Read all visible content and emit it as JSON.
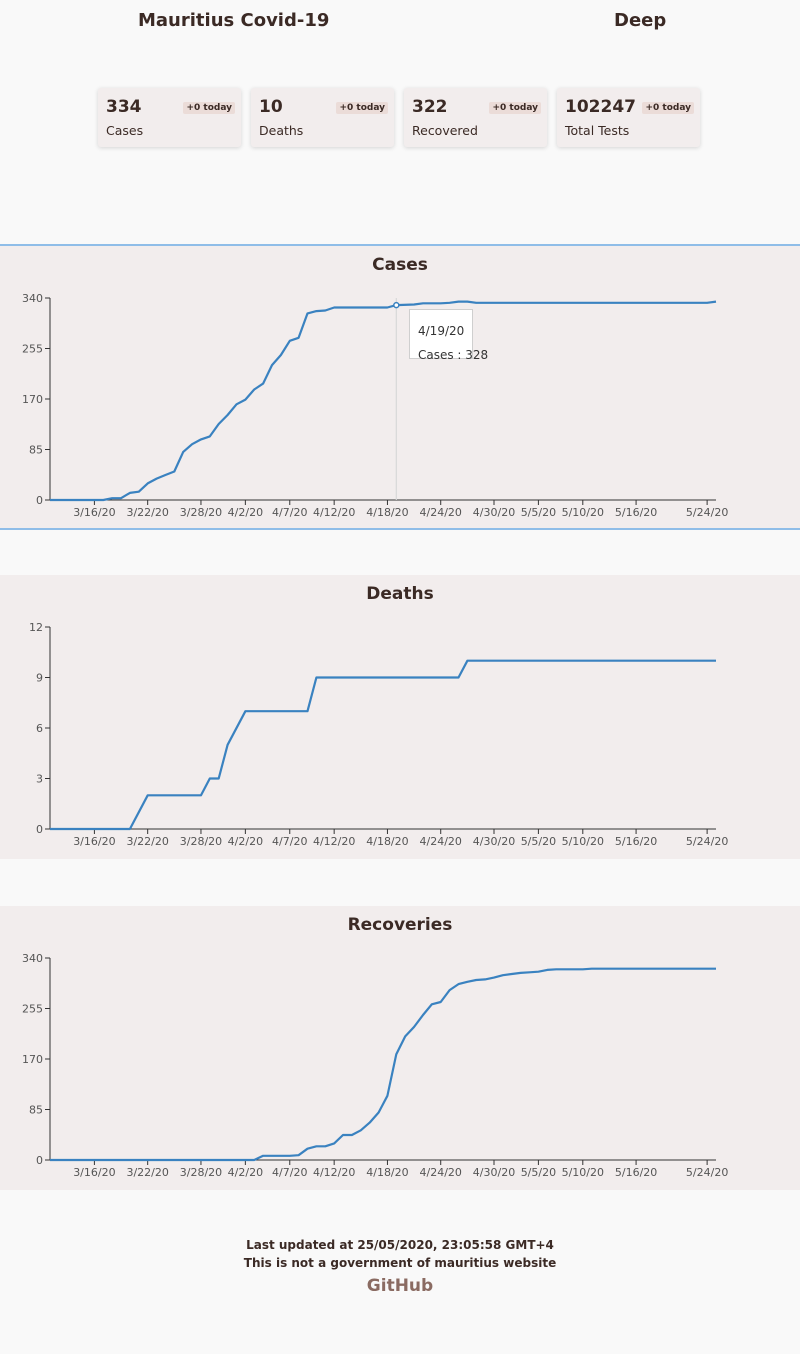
{
  "header": {
    "title": "Mauritius Covid-19",
    "theme_toggle": "Deep"
  },
  "stats": [
    {
      "value": "334",
      "label": "Cases",
      "badge": "+0 today"
    },
    {
      "value": "10",
      "label": "Deaths",
      "badge": "+0 today"
    },
    {
      "value": "322",
      "label": "Recovered",
      "badge": "+0 today"
    },
    {
      "value": "102247",
      "label": "Total Tests",
      "badge": "+0 today"
    }
  ],
  "tooltip": {
    "date": "4/19/20",
    "text": "Cases : 328"
  },
  "colors": {
    "line": "#3a82c0",
    "panel": "#f2eded",
    "accent": "#8fbde8"
  },
  "footer": {
    "updated": "Last updated at 25/05/2020, 23:05:58 GMT+4",
    "disclaimer": "This is not a government of mauritius website",
    "link": "GitHub"
  },
  "chart_data": [
    {
      "type": "line",
      "title": "Cases",
      "x_ticks": [
        "3/16/20",
        "3/22/20",
        "3/28/20",
        "4/2/20",
        "4/7/20",
        "4/12/20",
        "4/18/20",
        "4/24/20",
        "4/30/20",
        "5/5/20",
        "5/10/20",
        "5/16/20",
        "5/24/20"
      ],
      "ylim": [
        0,
        340
      ],
      "y_ticks": [
        0,
        85,
        170,
        255,
        340
      ],
      "series": [
        {
          "values": [
            [
              "3/11/20",
              0
            ],
            [
              "3/17/20",
              0
            ],
            [
              "3/18/20",
              3
            ],
            [
              "3/19/20",
              3
            ],
            [
              "3/20/20",
              12
            ],
            [
              "3/21/20",
              14
            ],
            [
              "3/22/20",
              28
            ],
            [
              "3/23/20",
              36
            ],
            [
              "3/24/20",
              42
            ],
            [
              "3/25/20",
              48
            ],
            [
              "3/26/20",
              81
            ],
            [
              "3/27/20",
              94
            ],
            [
              "3/28/20",
              102
            ],
            [
              "3/29/20",
              107
            ],
            [
              "3/30/20",
              128
            ],
            [
              "3/31/20",
              143
            ],
            [
              "4/1/20",
              161
            ],
            [
              "4/2/20",
              169
            ],
            [
              "4/3/20",
              186
            ],
            [
              "4/4/20",
              196
            ],
            [
              "4/5/20",
              227
            ],
            [
              "4/6/20",
              244
            ],
            [
              "4/7/20",
              268
            ],
            [
              "4/8/20",
              273
            ],
            [
              "4/9/20",
              314
            ],
            [
              "4/10/20",
              318
            ],
            [
              "4/11/20",
              319
            ],
            [
              "4/12/20",
              324
            ],
            [
              "4/18/20",
              324
            ],
            [
              "4/19/20",
              328
            ],
            [
              "4/21/20",
              329
            ],
            [
              "4/22/20",
              331
            ],
            [
              "4/24/20",
              331
            ],
            [
              "4/25/20",
              332
            ],
            [
              "4/26/20",
              334
            ],
            [
              "4/27/20",
              334
            ],
            [
              "4/28/20",
              332
            ],
            [
              "5/24/20",
              332
            ],
            [
              "5/25/20",
              334
            ]
          ]
        }
      ]
    },
    {
      "type": "line",
      "title": "Deaths",
      "x_ticks": [
        "3/16/20",
        "3/22/20",
        "3/28/20",
        "4/2/20",
        "4/7/20",
        "4/12/20",
        "4/18/20",
        "4/24/20",
        "4/30/20",
        "5/5/20",
        "5/10/20",
        "5/16/20",
        "5/24/20"
      ],
      "ylim": [
        0,
        12
      ],
      "y_ticks": [
        0,
        3,
        6,
        9,
        12
      ],
      "series": [
        {
          "values": [
            [
              "3/11/20",
              0
            ],
            [
              "3/20/20",
              0
            ],
            [
              "3/22/20",
              2
            ],
            [
              "3/28/20",
              2
            ],
            [
              "3/29/20",
              3
            ],
            [
              "3/30/20",
              3
            ],
            [
              "3/31/20",
              5
            ],
            [
              "4/2/20",
              7
            ],
            [
              "4/9/20",
              7
            ],
            [
              "4/10/20",
              9
            ],
            [
              "4/26/20",
              9
            ],
            [
              "4/27/20",
              10
            ],
            [
              "5/25/20",
              10
            ]
          ]
        }
      ]
    },
    {
      "type": "line",
      "title": "Recoveries",
      "x_ticks": [
        "3/16/20",
        "3/22/20",
        "3/28/20",
        "4/2/20",
        "4/7/20",
        "4/12/20",
        "4/18/20",
        "4/24/20",
        "4/30/20",
        "5/5/20",
        "5/10/20",
        "5/16/20",
        "5/24/20"
      ],
      "ylim": [
        0,
        340
      ],
      "y_ticks": [
        0,
        85,
        170,
        255,
        340
      ],
      "series": [
        {
          "values": [
            [
              "3/11/20",
              0
            ],
            [
              "4/3/20",
              0
            ],
            [
              "4/4/20",
              7
            ],
            [
              "4/7/20",
              7
            ],
            [
              "4/8/20",
              8
            ],
            [
              "4/9/20",
              19
            ],
            [
              "4/10/20",
              23
            ],
            [
              "4/11/20",
              23
            ],
            [
              "4/12/20",
              28
            ],
            [
              "4/13/20",
              42
            ],
            [
              "4/14/20",
              42
            ],
            [
              "4/15/20",
              50
            ],
            [
              "4/16/20",
              63
            ],
            [
              "4/17/20",
              80
            ],
            [
              "4/18/20",
              108
            ],
            [
              "4/19/20",
              178
            ],
            [
              "4/20/20",
              208
            ],
            [
              "4/21/20",
              224
            ],
            [
              "4/22/20",
              244
            ],
            [
              "4/23/20",
              262
            ],
            [
              "4/24/20",
              266
            ],
            [
              "4/25/20",
              286
            ],
            [
              "4/26/20",
              296
            ],
            [
              "4/27/20",
              300
            ],
            [
              "4/28/20",
              303
            ],
            [
              "4/29/20",
              304
            ],
            [
              "4/30/20",
              307
            ],
            [
              "5/1/20",
              311
            ],
            [
              "5/2/20",
              313
            ],
            [
              "5/3/20",
              315
            ],
            [
              "5/4/20",
              316
            ],
            [
              "5/5/20",
              317
            ],
            [
              "5/6/20",
              320
            ],
            [
              "5/7/20",
              321
            ],
            [
              "5/10/20",
              321
            ],
            [
              "5/11/20",
              322
            ],
            [
              "5/25/20",
              322
            ]
          ]
        }
      ]
    }
  ]
}
